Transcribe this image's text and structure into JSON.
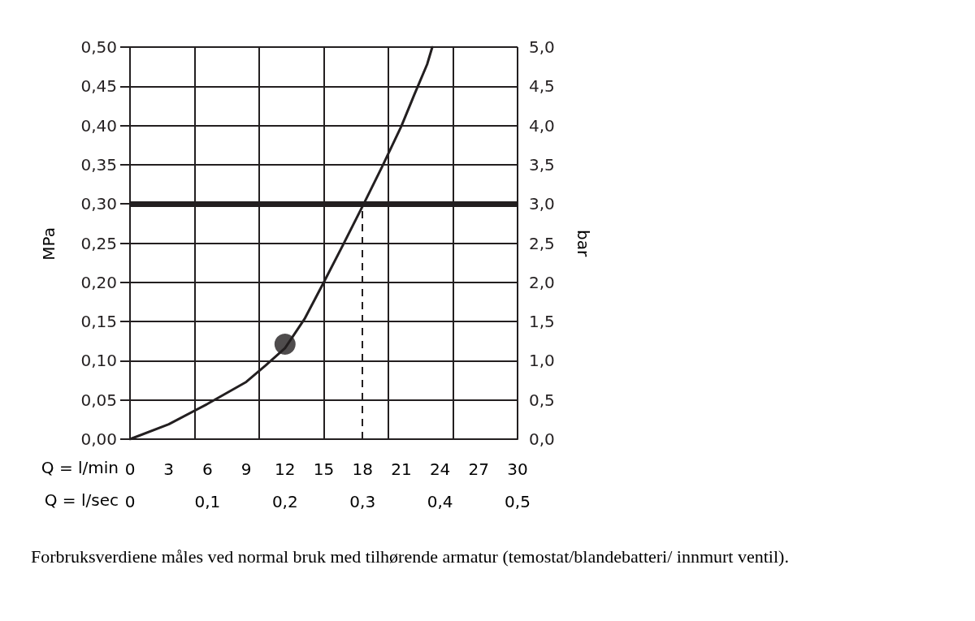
{
  "chart_data": {
    "type": "line",
    "ylabel": "MPa",
    "y2label": "bar",
    "xlabel": "Q = l/min",
    "x2label": "Q = l/sec",
    "xlim": [
      0,
      30
    ],
    "xticks": [
      0,
      3,
      6,
      9,
      12,
      15,
      18,
      21,
      24,
      27,
      30
    ],
    "x2lim": [
      0,
      0.5
    ],
    "x2ticks": [
      0,
      {
        "value": 0.1,
        "label": "0,1"
      },
      {
        "value": 0.2,
        "label": "0,2"
      },
      {
        "value": 0.3,
        "label": "0,3"
      },
      {
        "value": 0.4,
        "label": "0,4"
      },
      {
        "value": 0.5,
        "label": "0,5"
      }
    ],
    "ylim": [
      0,
      0.5
    ],
    "yticks": [
      {
        "value": 0,
        "label": "0,00"
      },
      {
        "value": 0.05,
        "label": "0,05"
      },
      {
        "value": 0.1,
        "label": "0,10"
      },
      {
        "value": 0.15,
        "label": "0,15"
      },
      {
        "value": 0.2,
        "label": "0,20"
      },
      {
        "value": 0.25,
        "label": "0,25"
      },
      {
        "value": 0.3,
        "label": "0,30"
      },
      {
        "value": 0.35,
        "label": "0,35"
      },
      {
        "value": 0.4,
        "label": "0,40"
      },
      {
        "value": 0.45,
        "label": "0,45"
      },
      {
        "value": 0.5,
        "label": "0,50"
      }
    ],
    "y2lim": [
      0,
      5
    ],
    "y2ticks": [
      {
        "value": 0,
        "label": "0,0"
      },
      {
        "value": 0.5,
        "label": "0,5"
      },
      {
        "value": 1,
        "label": "1,0"
      },
      {
        "value": 1.5,
        "label": "1,5"
      },
      {
        "value": 2,
        "label": "2,0"
      },
      {
        "value": 2.5,
        "label": "2,5"
      },
      {
        "value": 3,
        "label": "3,0"
      },
      {
        "value": 3.5,
        "label": "3,5"
      },
      {
        "value": 4,
        "label": "4,0"
      },
      {
        "value": 4.5,
        "label": "4,5"
      },
      {
        "value": 5,
        "label": "5,0"
      }
    ],
    "grid": true,
    "series": [
      {
        "color": "#231f20",
        "marker": "none",
        "x": [
          0,
          3,
          6,
          9,
          10.5,
          12,
          13.5,
          15,
          16.5,
          18,
          19.5,
          21,
          22,
          23,
          23.4
        ],
        "values": [
          0,
          0.019,
          0.045,
          0.073,
          0.094,
          0.116,
          0.153,
          0.2,
          0.248,
          0.297,
          0.347,
          0.399,
          0.439,
          0.478,
          0.5
        ]
      },
      {
        "type": "scatter",
        "color": "#231f20",
        "marker": "circle",
        "x": [
          12
        ],
        "values": [
          0.121
        ]
      }
    ],
    "ref_lines": [
      {
        "axis": "y",
        "value": 0.3,
        "color": "#231f20",
        "line_style": "solid"
      },
      {
        "axis": "x",
        "value": 18,
        "color": "#231f20",
        "line_style": "dashed"
      }
    ],
    "annotations": [
      "Forbruksverdiene måles ved normal bruk med tilhørende armatur (temostat/blandebatteri/ innmurt ventil)."
    ]
  }
}
